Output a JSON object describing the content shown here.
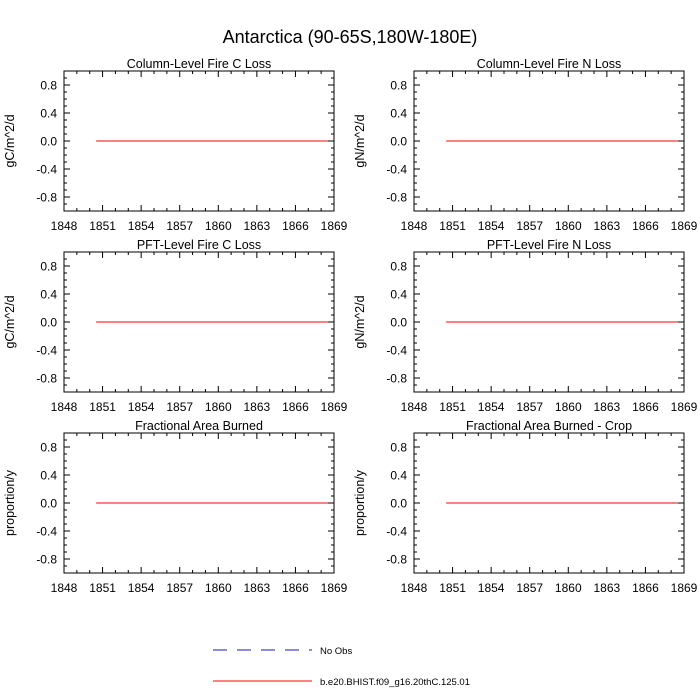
{
  "figure": {
    "title": "Antarctica (90-65S,180W-180E)"
  },
  "legend": {
    "position": "bottom-center",
    "entries": [
      {
        "label": "No Obs",
        "color": "#1a1aa8",
        "style": "dashed"
      },
      {
        "label": "b.e20.BHIST.f09_g16.20thC.125.01",
        "color": "#ff0000",
        "style": "solid"
      }
    ]
  },
  "chart_data": [
    {
      "type": "line",
      "title": "Column-Level Fire C Loss",
      "xlabel": "",
      "ylabel": "gC/m^2/d",
      "xlim": [
        1848,
        1869
      ],
      "ylim": [
        -1,
        1
      ],
      "x_ticks": [
        1848,
        1851,
        1854,
        1857,
        1860,
        1863,
        1866,
        1869
      ],
      "y_ticks": [
        -0.8,
        -0.4,
        0.0,
        0.4,
        0.8
      ],
      "y_tick_labels": [
        "-0.8",
        "-0.4",
        "0.0",
        "0.4",
        "0.8"
      ],
      "grid": false,
      "series": [
        {
          "color": "#ff0000",
          "x": [
            1850.5,
            1869
          ],
          "y": [
            0,
            0
          ]
        }
      ]
    },
    {
      "type": "line",
      "title": "Column-Level Fire N Loss",
      "xlabel": "",
      "ylabel": "gN/m^2/d",
      "xlim": [
        1848,
        1869
      ],
      "ylim": [
        -1,
        1
      ],
      "x_ticks": [
        1848,
        1851,
        1854,
        1857,
        1860,
        1863,
        1866,
        1869
      ],
      "y_ticks": [
        -0.8,
        -0.4,
        0.0,
        0.4,
        0.8
      ],
      "y_tick_labels": [
        "-0.8",
        "-0.4",
        "0.0",
        "0.4",
        "0.8"
      ],
      "grid": false,
      "series": [
        {
          "color": "#ff0000",
          "x": [
            1850.5,
            1869
          ],
          "y": [
            0,
            0
          ]
        }
      ]
    },
    {
      "type": "line",
      "title": "PFT-Level Fire C Loss",
      "xlabel": "",
      "ylabel": "gC/m^2/d",
      "xlim": [
        1848,
        1869
      ],
      "ylim": [
        -1,
        1
      ],
      "x_ticks": [
        1848,
        1851,
        1854,
        1857,
        1860,
        1863,
        1866,
        1869
      ],
      "y_ticks": [
        -0.8,
        -0.4,
        0.0,
        0.4,
        0.8
      ],
      "y_tick_labels": [
        "-0.8",
        "-0.4",
        "0.0",
        "0.4",
        "0.8"
      ],
      "grid": false,
      "series": [
        {
          "color": "#ff0000",
          "x": [
            1850.5,
            1869
          ],
          "y": [
            0,
            0
          ]
        }
      ]
    },
    {
      "type": "line",
      "title": "PFT-Level Fire N Loss",
      "xlabel": "",
      "ylabel": "gN/m^2/d",
      "xlim": [
        1848,
        1869
      ],
      "ylim": [
        -1,
        1
      ],
      "x_ticks": [
        1848,
        1851,
        1854,
        1857,
        1860,
        1863,
        1866,
        1869
      ],
      "y_ticks": [
        -0.8,
        -0.4,
        0.0,
        0.4,
        0.8
      ],
      "y_tick_labels": [
        "-0.8",
        "-0.4",
        "0.0",
        "0.4",
        "0.8"
      ],
      "grid": false,
      "series": [
        {
          "color": "#ff0000",
          "x": [
            1850.5,
            1869
          ],
          "y": [
            0,
            0
          ]
        }
      ]
    },
    {
      "type": "line",
      "title": "Fractional Area Burned",
      "xlabel": "",
      "ylabel": "proportion/y",
      "xlim": [
        1848,
        1869
      ],
      "ylim": [
        -1,
        1
      ],
      "x_ticks": [
        1848,
        1851,
        1854,
        1857,
        1860,
        1863,
        1866,
        1869
      ],
      "y_ticks": [
        -0.8,
        -0.4,
        0.0,
        0.4,
        0.8
      ],
      "y_tick_labels": [
        "-0.8",
        "-0.4",
        "0.0",
        "0.4",
        "0.8"
      ],
      "grid": false,
      "series": [
        {
          "color": "#ff0000",
          "x": [
            1850.5,
            1869
          ],
          "y": [
            0,
            0
          ]
        }
      ]
    },
    {
      "type": "line",
      "title": "Fractional Area Burned - Crop",
      "xlabel": "",
      "ylabel": "proportion/y",
      "xlim": [
        1848,
        1869
      ],
      "ylim": [
        -1,
        1
      ],
      "x_ticks": [
        1848,
        1851,
        1854,
        1857,
        1860,
        1863,
        1866,
        1869
      ],
      "y_ticks": [
        -0.8,
        -0.4,
        0.0,
        0.4,
        0.8
      ],
      "y_tick_labels": [
        "-0.8",
        "-0.4",
        "0.0",
        "0.4",
        "0.8"
      ],
      "grid": false,
      "series": [
        {
          "color": "#ff0000",
          "x": [
            1850.5,
            1869
          ],
          "y": [
            0,
            0
          ]
        }
      ]
    }
  ]
}
